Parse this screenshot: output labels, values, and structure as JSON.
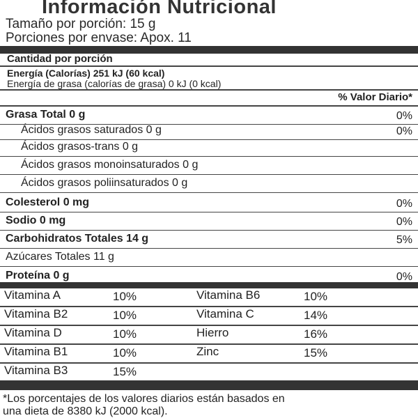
{
  "title": "Información Nutricional",
  "serving_size": "Tamaño por porción: 15 g",
  "servings_per_container": "Porciones por envase: Apox. 11",
  "amount_per_serving": "Cantidad por porción",
  "energy": "Energía (Calorías) 251 kJ (60 kcal)",
  "fat_energy": "Energía de grasa (calorías de grasa) 0 kJ (0 kcal)",
  "daily_value_header": "% Valor Diario*",
  "nutrients": [
    {
      "label": "Grasa Total 0 g",
      "dv": "0%",
      "bold": true
    },
    {
      "label": "Ácidos grasos saturados 0 g",
      "dv": "0%",
      "bold": false
    },
    {
      "label": "Ácidos grasos-trans 0 g",
      "dv": "",
      "bold": false
    },
    {
      "label": "Ácidos grasos monoinsaturados 0 g",
      "dv": "",
      "bold": false
    },
    {
      "label": "Ácidos grasos poliinsaturados 0 g",
      "dv": "",
      "bold": false
    },
    {
      "label": "Colesterol 0 mg",
      "dv": "0%",
      "bold": true
    },
    {
      "label": "Sodio 0 mg",
      "dv": "0%",
      "bold": true
    },
    {
      "label": "Carbohidratos Totales 14 g",
      "dv": "5%",
      "bold": true
    },
    {
      "label": "Azúcares Totales 11 g",
      "dv": "",
      "bold": false
    },
    {
      "label": "Proteína 0 g",
      "dv": "0%",
      "bold": true
    }
  ],
  "vitamins": [
    [
      {
        "name": "Vitamina A",
        "dv": "10%"
      },
      {
        "name": "Vitamina B6",
        "dv": "10%"
      }
    ],
    [
      {
        "name": "Vitamina B2",
        "dv": "10%"
      },
      {
        "name": "Vitamina C",
        "dv": "14%"
      }
    ],
    [
      {
        "name": "Vitamina D",
        "dv": "10%"
      },
      {
        "name": "Hierro",
        "dv": "16%"
      }
    ],
    [
      {
        "name": "Vitamina B1",
        "dv": "10%"
      },
      {
        "name": "Zinc",
        "dv": "15%"
      }
    ],
    [
      {
        "name": "Vitamina B3",
        "dv": "15%"
      }
    ]
  ],
  "footnote_line1": "*Los porcentajes de los valores diarios están basados en",
  "footnote_line2": "una dieta de 8380 kJ (2000 kcal)."
}
